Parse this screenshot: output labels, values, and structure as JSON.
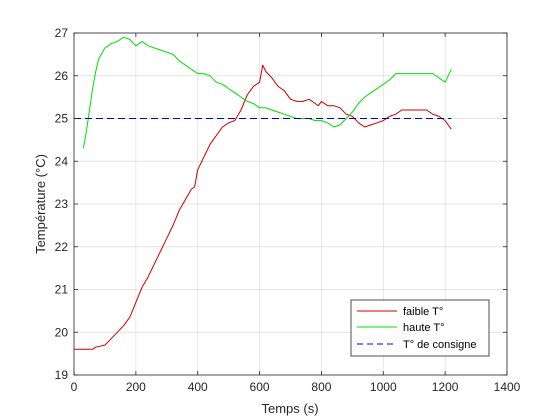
{
  "chart_data": {
    "type": "line",
    "title": "",
    "xlabel": "Temps (s)",
    "ylabel": "Température (°C)",
    "xlim": [
      0,
      1400
    ],
    "ylim": [
      19,
      27
    ],
    "xticks": [
      0,
      200,
      400,
      600,
      800,
      1000,
      1200,
      1400
    ],
    "yticks": [
      19,
      20,
      21,
      22,
      23,
      24,
      25,
      26,
      27
    ],
    "grid": true,
    "legend_position": "bottom-right",
    "series": [
      {
        "name": "faible T°",
        "color": "#cc0000",
        "style": "solid",
        "x": [
          0,
          60,
          70,
          100,
          120,
          140,
          160,
          180,
          200,
          220,
          240,
          260,
          280,
          300,
          320,
          340,
          360,
          380,
          390,
          400,
          420,
          440,
          460,
          480,
          500,
          520,
          540,
          560,
          580,
          600,
          610,
          620,
          640,
          660,
          680,
          700,
          720,
          740,
          760,
          780,
          790,
          800,
          820,
          840,
          860,
          880,
          900,
          920,
          940,
          960,
          980,
          1000,
          1020,
          1040,
          1060,
          1080,
          1100,
          1120,
          1140,
          1160,
          1180,
          1200,
          1220
        ],
        "y": [
          19.6,
          19.6,
          19.65,
          19.7,
          19.85,
          20.0,
          20.15,
          20.35,
          20.7,
          21.05,
          21.3,
          21.6,
          21.9,
          22.2,
          22.5,
          22.85,
          23.1,
          23.35,
          23.4,
          23.8,
          24.1,
          24.4,
          24.6,
          24.8,
          24.9,
          24.95,
          25.2,
          25.55,
          25.75,
          25.85,
          26.25,
          26.1,
          25.95,
          25.75,
          25.65,
          25.45,
          25.4,
          25.4,
          25.45,
          25.35,
          25.3,
          25.4,
          25.3,
          25.3,
          25.25,
          25.1,
          25.05,
          24.9,
          24.8,
          24.85,
          24.9,
          24.95,
          25.05,
          25.1,
          25.2,
          25.2,
          25.2,
          25.2,
          25.2,
          25.1,
          25.05,
          24.95,
          24.75
        ]
      },
      {
        "name": "haute T°",
        "color": "#00e000",
        "style": "solid",
        "x": [
          30,
          40,
          50,
          60,
          70,
          80,
          100,
          120,
          140,
          160,
          180,
          200,
          220,
          240,
          260,
          280,
          300,
          320,
          340,
          360,
          380,
          400,
          420,
          440,
          460,
          480,
          500,
          520,
          540,
          560,
          580,
          600,
          620,
          640,
          660,
          680,
          700,
          720,
          740,
          760,
          780,
          800,
          820,
          840,
          860,
          880,
          900,
          920,
          940,
          960,
          980,
          1000,
          1020,
          1040,
          1060,
          1080,
          1100,
          1120,
          1140,
          1160,
          1180,
          1200,
          1220
        ],
        "y": [
          24.3,
          24.7,
          25.2,
          25.7,
          26.1,
          26.4,
          26.65,
          26.75,
          26.8,
          26.9,
          26.85,
          26.7,
          26.8,
          26.7,
          26.65,
          26.6,
          26.55,
          26.5,
          26.35,
          26.25,
          26.15,
          26.05,
          26.05,
          26.0,
          25.85,
          25.8,
          25.7,
          25.6,
          25.5,
          25.4,
          25.35,
          25.25,
          25.25,
          25.2,
          25.15,
          25.1,
          25.05,
          25.0,
          25.0,
          25.0,
          24.95,
          24.95,
          24.9,
          24.8,
          24.85,
          25.0,
          25.15,
          25.35,
          25.5,
          25.6,
          25.7,
          25.8,
          25.9,
          26.05,
          26.05,
          26.05,
          26.05,
          26.05,
          26.05,
          26.05,
          25.95,
          25.85,
          26.15
        ]
      },
      {
        "name": "T° de consigne",
        "color": "#0000cc",
        "style": "dashed",
        "x": [
          0,
          1220
        ],
        "y": [
          25,
          25
        ]
      }
    ]
  }
}
